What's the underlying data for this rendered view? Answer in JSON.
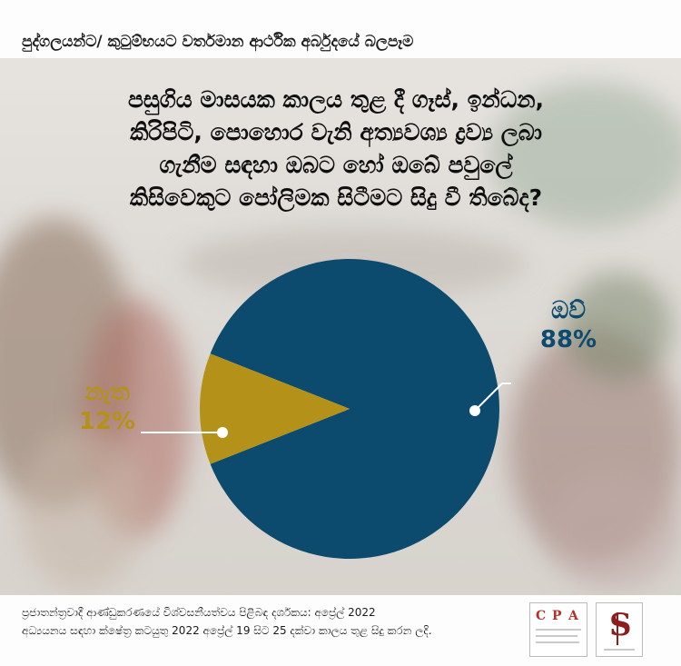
{
  "header": {
    "title": "පුද්ගලයන්ට/ කුටුම්භයට වර්තමාන ආර්ථික අර්බුදයේ බලපෑම"
  },
  "question": {
    "lines": [
      "පසුගිය මාසයක කාලය තුළ දී ගෑස්, ඉන්ධන,",
      "කිරිපිටි, පොහොර වැනි අත්‍යවශ්‍ය ද්‍රව්‍ය ලබා",
      "ගැනීම සඳහා ඔබට හෝ ඔබේ පවුලේ",
      "කිසිවෙකුට පෝලිමක සිටීමට සිදු වී තිබේද?"
    ]
  },
  "chart_data": {
    "type": "pie",
    "title": "",
    "slices": [
      {
        "label": "ඔව්",
        "value": 88,
        "value_label": "88%",
        "color": "#0c4a6e"
      },
      {
        "label": "නැත",
        "value": 12,
        "value_label": "12%",
        "color": "#b4921a"
      }
    ]
  },
  "footer": {
    "line1": "ප්‍රජාතන්ත්‍රවාදී ආණ්ඩුකරණයේ විශ්වසනීයත්වය පිළිබඳ දර්ශකය: අප්‍රේල් 2022",
    "line2": "අධ්‍යයනය සඳහා ක්ෂේත්‍ර කටයුතු 2022 අප්‍රේල් 19 සිට 25 දක්වා කාලය තුළ සිදු කරන ලදි."
  },
  "logos": {
    "cpa_letters": [
      "C",
      "P",
      "A"
    ],
    "ss_mark": "S"
  }
}
